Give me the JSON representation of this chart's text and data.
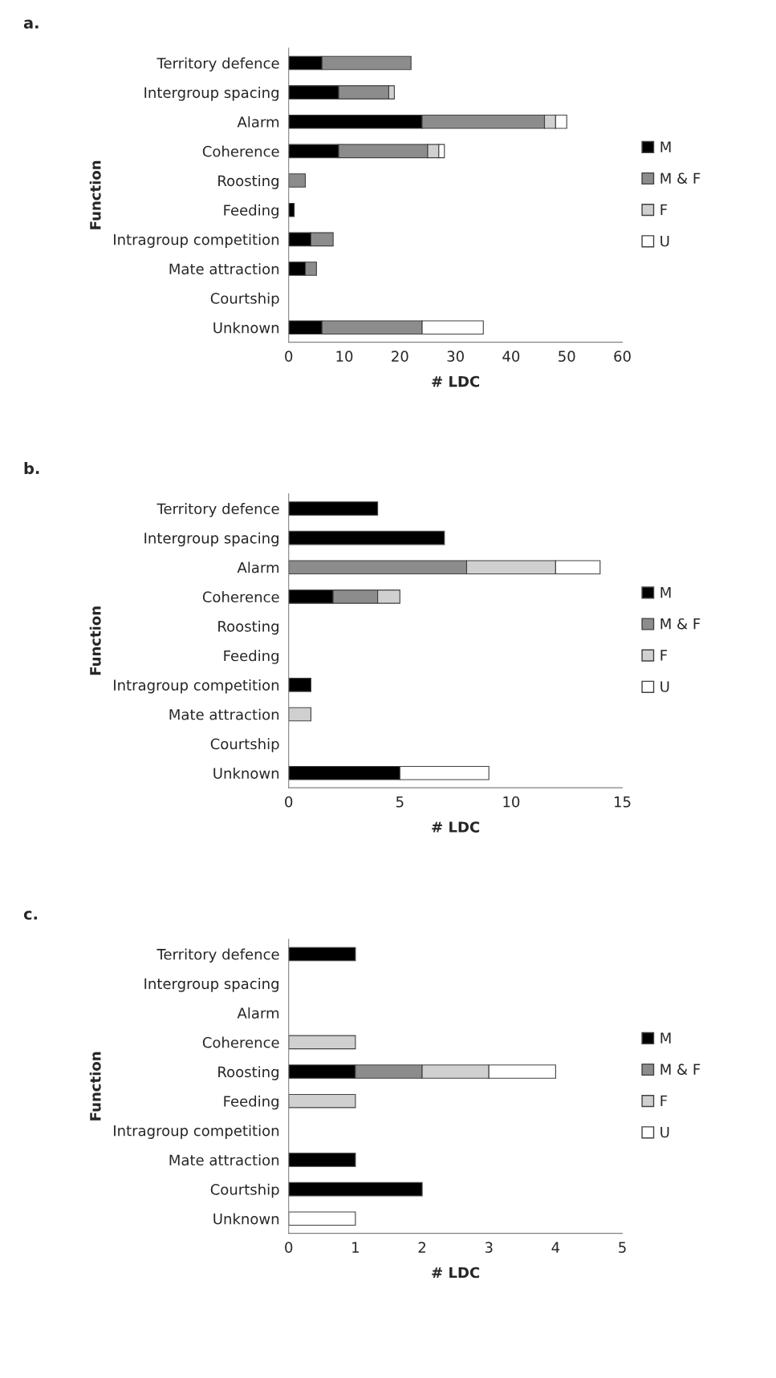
{
  "chart_data": [
    {
      "type": "bar",
      "title": "a.",
      "orientation": "horizontal",
      "stacked": true,
      "xlabel": "# LDC",
      "ylabel": "Function",
      "legend": "right",
      "grid": false,
      "categories": [
        "Territory defence",
        "Intergroup spacing",
        "Alarm",
        "Coherence",
        "Roosting",
        "Feeding",
        "Intragroup competition",
        "Mate attraction",
        "Courtship",
        "Unknown"
      ],
      "xlim": [
        0,
        60
      ],
      "xticks": [
        0,
        10,
        20,
        30,
        40,
        50,
        60
      ],
      "series": [
        {
          "name": "M",
          "color": "#000000",
          "values": [
            6,
            9,
            24,
            9,
            0,
            1,
            4,
            3,
            0,
            6
          ]
        },
        {
          "name": "M & F",
          "color": "#8c8c8c",
          "values": [
            16,
            9,
            22,
            16,
            3,
            0,
            4,
            2,
            0,
            18
          ]
        },
        {
          "name": "F",
          "color": "#d0d0d0",
          "values": [
            0,
            1,
            2,
            2,
            0,
            0,
            0,
            0,
            0,
            0
          ]
        },
        {
          "name": "U",
          "color": "#ffffff",
          "values": [
            0,
            0,
            2,
            1,
            0,
            0,
            0,
            0,
            0,
            11
          ]
        }
      ]
    },
    {
      "type": "bar",
      "title": "b.",
      "orientation": "horizontal",
      "stacked": true,
      "xlabel": "# LDC",
      "ylabel": "Function",
      "legend": "right",
      "grid": false,
      "categories": [
        "Territory defence",
        "Intergroup spacing",
        "Alarm",
        "Coherence",
        "Roosting",
        "Feeding",
        "Intragroup competition",
        "Mate attraction",
        "Courtship",
        "Unknown"
      ],
      "xlim": [
        0,
        15
      ],
      "xticks": [
        0,
        5,
        10,
        15
      ],
      "series": [
        {
          "name": "M",
          "color": "#000000",
          "values": [
            4,
            7,
            0,
            2,
            0,
            0,
            1,
            0,
            0,
            5
          ]
        },
        {
          "name": "M & F",
          "color": "#8c8c8c",
          "values": [
            0,
            0,
            8,
            2,
            0,
            0,
            0,
            0,
            0,
            0
          ]
        },
        {
          "name": "F",
          "color": "#d0d0d0",
          "values": [
            0,
            0,
            4,
            1,
            0,
            0,
            0,
            1,
            0,
            0
          ]
        },
        {
          "name": "U",
          "color": "#ffffff",
          "values": [
            0,
            0,
            2,
            0,
            0,
            0,
            0,
            0,
            0,
            4
          ]
        }
      ]
    },
    {
      "type": "bar",
      "title": "c.",
      "orientation": "horizontal",
      "stacked": true,
      "xlabel": "# LDC",
      "ylabel": "Function",
      "legend": "right",
      "grid": false,
      "categories": [
        "Territory defence",
        "Intergroup spacing",
        "Alarm",
        "Coherence",
        "Roosting",
        "Feeding",
        "Intragroup competition",
        "Mate attraction",
        "Courtship",
        "Unknown"
      ],
      "xlim": [
        0,
        5
      ],
      "xticks": [
        0,
        1,
        2,
        3,
        4,
        5
      ],
      "series": [
        {
          "name": "M",
          "color": "#000000",
          "values": [
            1,
            0,
            0,
            0,
            1,
            0,
            0,
            1,
            2,
            0
          ]
        },
        {
          "name": "M & F",
          "color": "#8c8c8c",
          "values": [
            0,
            0,
            0,
            0,
            1,
            0,
            0,
            0,
            0,
            0
          ]
        },
        {
          "name": "F",
          "color": "#d0d0d0",
          "values": [
            0,
            0,
            0,
            1,
            1,
            1,
            0,
            0,
            0,
            0
          ]
        },
        {
          "name": "U",
          "color": "#ffffff",
          "values": [
            0,
            0,
            0,
            0,
            1,
            0,
            0,
            0,
            0,
            1
          ]
        }
      ]
    }
  ]
}
